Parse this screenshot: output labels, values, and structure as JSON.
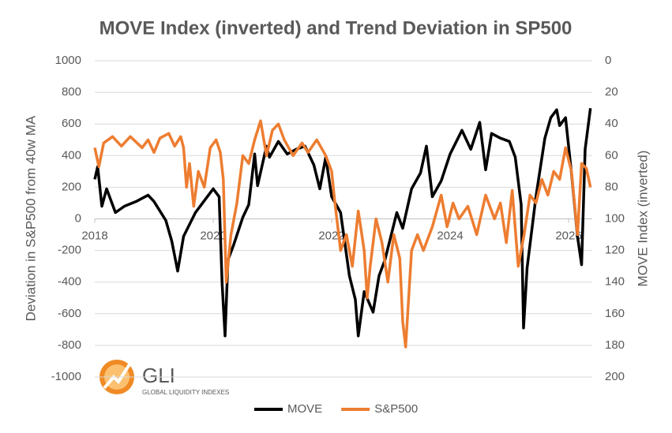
{
  "chart_data": {
    "type": "line",
    "title": "MOVE Index (inverted) and Trend Deviation in SP500",
    "y_label": "Deviation in S&P500 from 40w MA",
    "y2_label": "MOVE Index (inverted)",
    "xlim": [
      2018,
      2026.4
    ],
    "xticks": [
      2018,
      2020,
      2022,
      2024,
      2026
    ],
    "ylim": [
      -1000,
      1000
    ],
    "yticks": [
      -1000,
      -800,
      -600,
      -400,
      -200,
      0,
      200,
      400,
      600,
      800,
      1000
    ],
    "y2lim": [
      200,
      0
    ],
    "y2ticks": [
      200,
      180,
      160,
      140,
      120,
      100,
      80,
      60,
      40,
      20,
      0
    ],
    "grid": true,
    "legend": "bottom",
    "logo": {
      "name": "GLI",
      "tagline": "GLOBAL LIQUIDITY INDEXES"
    },
    "series": [
      {
        "name": "MOVE",
        "color": "#000000",
        "axis": "y2",
        "x": [
          2018.0,
          2018.05,
          2018.12,
          2018.2,
          2018.35,
          2018.5,
          2018.7,
          2018.9,
          2019.0,
          2019.2,
          2019.3,
          2019.4,
          2019.5,
          2019.7,
          2019.9,
          2020.0,
          2020.1,
          2020.15,
          2020.2,
          2020.25,
          2020.35,
          2020.5,
          2020.6,
          2020.7,
          2020.75,
          2020.9,
          2020.95,
          2021.1,
          2021.25,
          2021.4,
          2021.55,
          2021.7,
          2021.8,
          2021.9,
          2022.0,
          2022.15,
          2022.3,
          2022.4,
          2022.45,
          2022.55,
          2022.7,
          2022.8,
          2022.9,
          2023.0,
          2023.1,
          2023.2,
          2023.35,
          2023.5,
          2023.6,
          2023.7,
          2023.85,
          2024.0,
          2024.2,
          2024.35,
          2024.5,
          2024.6,
          2024.7,
          2024.85,
          2025.0,
          2025.1,
          2025.2,
          2025.24,
          2025.3,
          2025.45,
          2025.6,
          2025.7,
          2025.8,
          2025.85,
          2025.95,
          2026.05,
          2026.15,
          2026.22,
          2026.28,
          2026.37
        ],
        "values": [
          75,
          67,
          92,
          81,
          96,
          92,
          89,
          85,
          89,
          101,
          114,
          133,
          111,
          96,
          86,
          81,
          86,
          141,
          174,
          126,
          116,
          99,
          91,
          59,
          79,
          54,
          61,
          51,
          59,
          56,
          54,
          66,
          81,
          61,
          86,
          96,
          136,
          151,
          174,
          146,
          159,
          136,
          126,
          111,
          96,
          106,
          81,
          71,
          54,
          86,
          76,
          59,
          44,
          56,
          39,
          69,
          46,
          49,
          51,
          61,
          91,
          169,
          131,
          86,
          49,
          36,
          31,
          41,
          36,
          71,
          111,
          129,
          56,
          30
        ]
      },
      {
        "name": "S&P500",
        "color": "#ed7d31",
        "x": [
          2018.0,
          2018.07,
          2018.15,
          2018.3,
          2018.45,
          2018.6,
          2018.8,
          2018.9,
          2019.0,
          2019.1,
          2019.25,
          2019.35,
          2019.45,
          2019.5,
          2019.55,
          2019.6,
          2019.67,
          2019.75,
          2019.85,
          2019.95,
          2020.05,
          2020.12,
          2020.17,
          2020.22,
          2020.3,
          2020.4,
          2020.5,
          2020.6,
          2020.7,
          2020.8,
          2020.9,
          2021.0,
          2021.1,
          2021.2,
          2021.35,
          2021.5,
          2021.6,
          2021.75,
          2021.9,
          2022.0,
          2022.05,
          2022.15,
          2022.25,
          2022.35,
          2022.45,
          2022.55,
          2022.6,
          2022.65,
          2022.75,
          2022.85,
          2022.95,
          2023.05,
          2023.15,
          2023.2,
          2023.25,
          2023.35,
          2023.45,
          2023.55,
          2023.7,
          2023.85,
          2023.95,
          2024.05,
          2024.15,
          2024.3,
          2024.45,
          2024.6,
          2024.75,
          2024.85,
          2024.95,
          2025.05,
          2025.15,
          2025.25,
          2025.35,
          2025.45,
          2025.55,
          2025.65,
          2025.75,
          2025.85,
          2025.95,
          2026.05,
          2026.15,
          2026.22,
          2026.3,
          2026.37
        ],
        "values": [
          450,
          330,
          480,
          520,
          460,
          520,
          450,
          500,
          420,
          510,
          540,
          460,
          520,
          450,
          200,
          350,
          80,
          300,
          200,
          450,
          500,
          420,
          250,
          -400,
          -100,
          100,
          400,
          350,
          500,
          620,
          400,
          560,
          600,
          500,
          400,
          480,
          420,
          500,
          400,
          300,
          120,
          -200,
          -100,
          -300,
          50,
          -200,
          -500,
          -300,
          0,
          -150,
          -400,
          -100,
          -250,
          -650,
          -810,
          -200,
          -100,
          -200,
          -50,
          150,
          -50,
          100,
          0,
          80,
          -100,
          150,
          0,
          100,
          -150,
          180,
          -300,
          -100,
          150,
          100,
          250,
          150,
          300,
          250,
          450,
          300,
          -100,
          350,
          320,
          200
        ]
      }
    ]
  }
}
